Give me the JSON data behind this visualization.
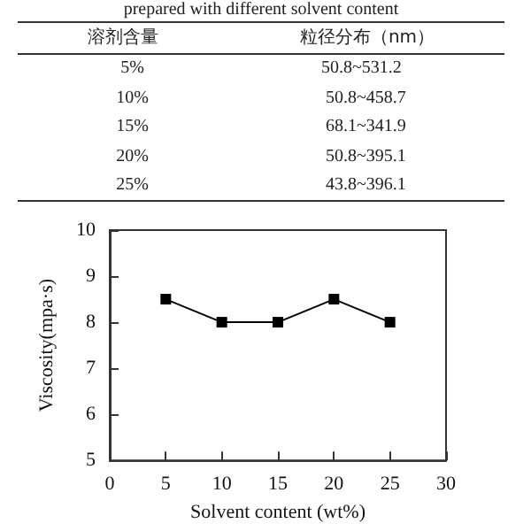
{
  "chart_data": [
    {
      "type": "other",
      "title": "prepared with different solvent content",
      "annotations": [
        "溶剂含量",
        "粒径分布（nm）",
        "5%",
        "50.8~531.2",
        "10%",
        "50.8~458.7",
        "15%",
        "68.1~341.9",
        "20%",
        "50.8~395.1",
        "25%",
        "43.8~396.1"
      ]
    },
    {
      "type": "line",
      "x": [
        5,
        10,
        15,
        20,
        25
      ],
      "series": [
        {
          "color": "#000000",
          "values": [
            8.5,
            8,
            8,
            8.5,
            8
          ]
        }
      ],
      "xlim": [
        0,
        30
      ],
      "xticks": [
        0,
        5,
        10,
        15,
        20,
        25,
        30
      ],
      "ylim": [
        5,
        10
      ],
      "yticks": [
        5,
        6,
        7,
        8,
        9,
        10
      ],
      "xlabel": "Solvent content (wt%)",
      "ylabel": "Viscosity(mpa·s)",
      "marker": "square",
      "line_style": "solid",
      "grid": false
    }
  ]
}
